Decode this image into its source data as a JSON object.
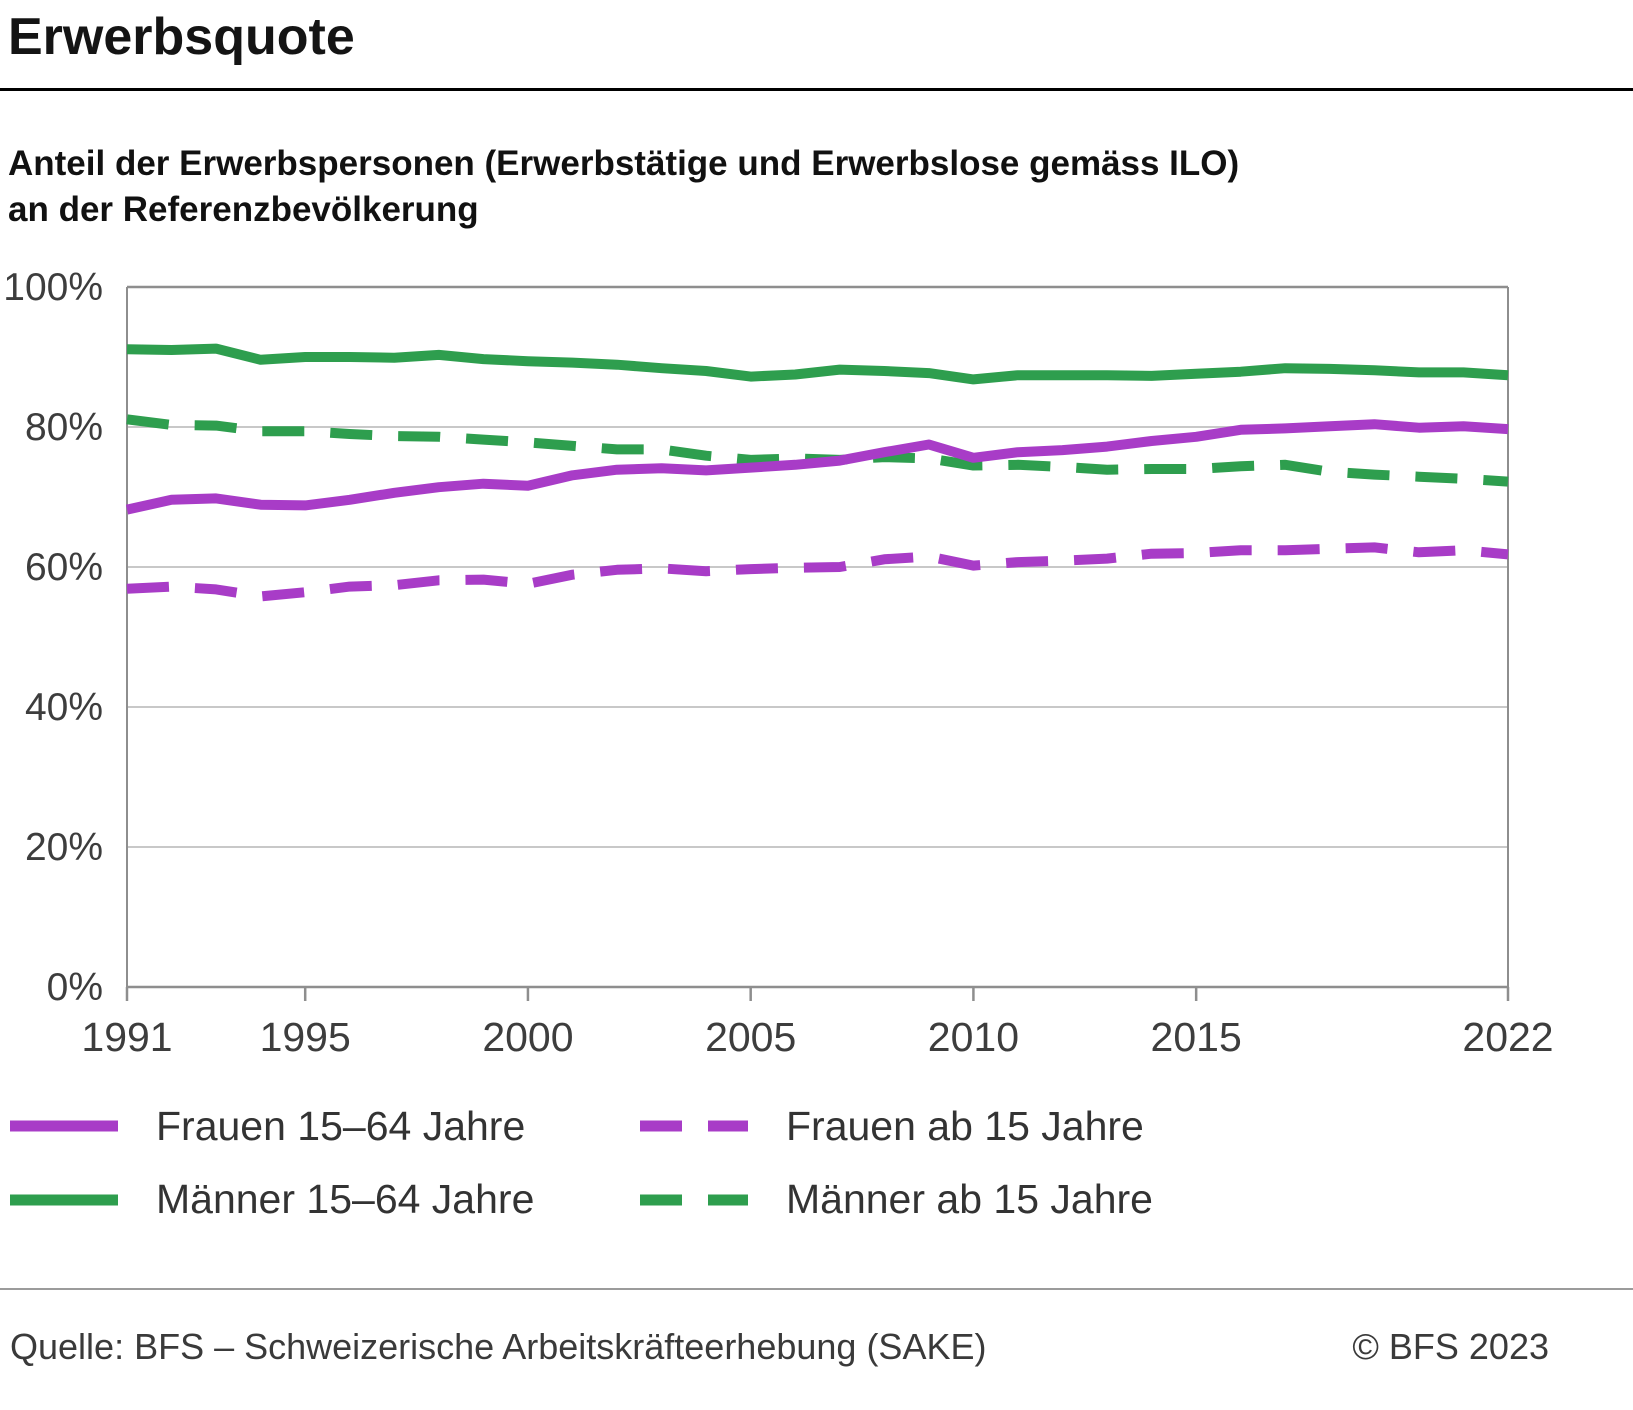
{
  "header": {
    "title": "Erwerbsquote",
    "subtitle": "Anteil der Erwerbspersonen (Erwerbstätige und Erwerbslose gemäss ILO)\nan der Referenzbevölkerung"
  },
  "footer": {
    "source": "Quelle: BFS – Schweizerische Arbeitskräfteerhebung (SAKE)",
    "copyright": "© BFS 2023"
  },
  "chart_data": {
    "type": "line",
    "title": "Erwerbsquote",
    "xlabel": "",
    "ylabel": "",
    "x_range": [
      1991,
      2022
    ],
    "y_range": [
      0,
      100
    ],
    "x_ticks": [
      1991,
      1995,
      2000,
      2005,
      2010,
      2015,
      2022
    ],
    "y_ticks": [
      {
        "value": 0,
        "label": "0%"
      },
      {
        "value": 20,
        "label": "20%"
      },
      {
        "value": 40,
        "label": "40%"
      },
      {
        "value": 60,
        "label": "60%"
      },
      {
        "value": 80,
        "label": "80%"
      },
      {
        "value": 100,
        "label": "100%"
      }
    ],
    "grid": "horizontal",
    "legend_position": "bottom",
    "years": [
      1991,
      1992,
      1993,
      1994,
      1995,
      1996,
      1997,
      1998,
      1999,
      2000,
      2001,
      2002,
      2003,
      2004,
      2005,
      2006,
      2007,
      2008,
      2009,
      2010,
      2011,
      2012,
      2013,
      2014,
      2015,
      2016,
      2017,
      2018,
      2019,
      2020,
      2021,
      2022
    ],
    "colors": {
      "frauen": "#a83cc7",
      "maenner": "#2e9e4e"
    },
    "series": [
      {
        "name": "Frauen 15–64 Jahre",
        "color": "#a83cc7",
        "style": "solid",
        "values": [
          68.2,
          69.6,
          69.8,
          68.9,
          68.8,
          69.6,
          70.6,
          71.4,
          71.9,
          71.6,
          73.1,
          73.9,
          74.1,
          73.8,
          74.2,
          74.6,
          75.2,
          76.4,
          77.5,
          75.6,
          76.4,
          76.7,
          77.2,
          78.0,
          78.6,
          79.6,
          79.8,
          80.1,
          80.4,
          79.9,
          80.1,
          79.7
        ]
      },
      {
        "name": "Frauen ab 15 Jahre",
        "color": "#a83cc7",
        "style": "dashed",
        "values": [
          56.9,
          57.2,
          56.8,
          55.8,
          56.4,
          57.2,
          57.4,
          58.1,
          58.2,
          57.6,
          58.9,
          59.6,
          59.8,
          59.4,
          59.7,
          59.9,
          60.0,
          61.1,
          61.5,
          60.2,
          60.7,
          60.9,
          61.2,
          61.9,
          62.0,
          62.4,
          62.4,
          62.6,
          62.8,
          62.1,
          62.4,
          61.8
        ]
      },
      {
        "name": "Männer 15–64 Jahre",
        "color": "#2e9e4e",
        "style": "solid",
        "values": [
          91.1,
          91.0,
          91.2,
          89.6,
          90.0,
          90.0,
          89.9,
          90.3,
          89.7,
          89.4,
          89.2,
          88.9,
          88.4,
          88.0,
          87.2,
          87.5,
          88.2,
          88.0,
          87.7,
          86.8,
          87.4,
          87.4,
          87.4,
          87.3,
          87.6,
          87.9,
          88.4,
          88.3,
          88.1,
          87.8,
          87.8,
          87.4
        ]
      },
      {
        "name": "Männer ab 15 Jahre",
        "color": "#2e9e4e",
        "style": "dashed",
        "values": [
          81.1,
          80.3,
          80.2,
          79.4,
          79.4,
          79.0,
          78.7,
          78.6,
          78.2,
          77.8,
          77.3,
          76.8,
          76.8,
          75.9,
          75.3,
          75.5,
          75.3,
          75.7,
          75.5,
          74.5,
          74.6,
          74.3,
          73.9,
          74.0,
          74.0,
          74.4,
          74.6,
          73.6,
          73.2,
          72.9,
          72.6,
          72.2
        ]
      }
    ],
    "draw_order": [
      2,
      3,
      0,
      1
    ]
  }
}
